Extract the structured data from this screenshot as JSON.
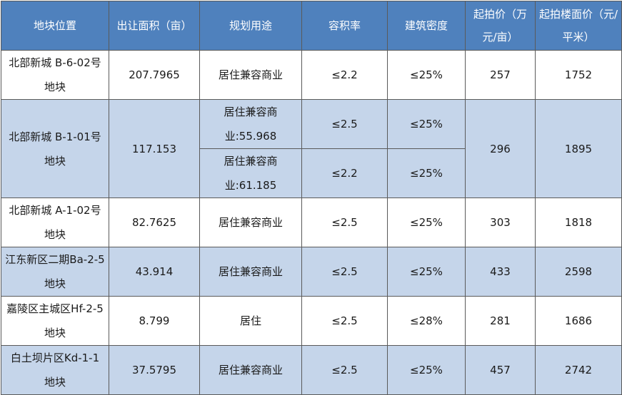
{
  "table": {
    "headers": [
      "地块位置",
      "出让面积（亩）",
      "规划用途",
      "容积率",
      "建筑密度",
      "起拍价（万元/亩）",
      "起拍楼面价（元/平米）"
    ],
    "rows": [
      {
        "location": "北部新城 B-6-02号地块",
        "area": "207.7965",
        "use": "居住兼容商业",
        "far": "≤2.2",
        "density": "≤25%",
        "price": "257",
        "floor_price": "1752"
      },
      {
        "location": "北部新城 B-1-01号地块",
        "area": "117.153",
        "use": "居住兼容商业:55.968",
        "far": "≤2.5",
        "density": "≤25%",
        "price": "296",
        "floor_price": "1895"
      },
      {
        "use": "居住兼容商业:61.185",
        "far": "≤2.2",
        "density": "≤25%"
      },
      {
        "location": "北部新城 A-1-02号地块",
        "area": "82.7625",
        "use": "居住兼容商业",
        "far": "≤2.5",
        "density": "≤25%",
        "price": "303",
        "floor_price": "1818"
      },
      {
        "location": "江东新区二期Ba-2-5 地块",
        "area": "43.914",
        "use": "居住兼容商业",
        "far": "≤2.5",
        "density": "≤25%",
        "price": "433",
        "floor_price": "2598"
      },
      {
        "location": "嘉陵区主城区Hf-2-5 地块",
        "area": "8.799",
        "use": "居住",
        "far": "≤2.5",
        "density": "≤28%",
        "price": "281",
        "floor_price": "1686"
      },
      {
        "location": "白土坝片区Kd-1-1 地块",
        "area": "37.5795",
        "use": "居住兼容商业",
        "far": "≤2.5",
        "density": "≤25%",
        "price": "457",
        "floor_price": "2742"
      }
    ]
  }
}
